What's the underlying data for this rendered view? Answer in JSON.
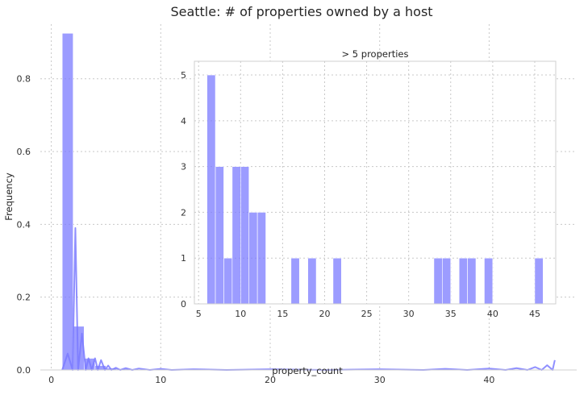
{
  "chart_data": [
    {
      "type": "bar",
      "title": "Seattle: # of properties owned by a host",
      "xlabel": "property_count",
      "ylabel": "Frequency",
      "xlim": [
        -1,
        48
      ],
      "ylim": [
        0,
        0.95
      ],
      "x_ticks": [
        0,
        10,
        20,
        30,
        40
      ],
      "y_ticks": [
        0.0,
        0.2,
        0.4,
        0.6,
        0.8
      ],
      "grid": true,
      "color": "#7b7bff",
      "bin_width": 1,
      "bars": [
        {
          "x": 1,
          "y": 0.925
        },
        {
          "x": 2,
          "y": 0.12
        },
        {
          "x": 3,
          "y": 0.032
        },
        {
          "x": 4,
          "y": 0.012
        },
        {
          "x": 5,
          "y": 0.005
        },
        {
          "x": 6,
          "y": 0.003
        }
      ],
      "line": {
        "x": [
          1.0,
          1.5,
          1.95,
          2.2,
          2.45,
          2.8,
          3.15,
          3.4,
          3.7,
          4.0,
          4.25,
          4.55,
          4.9,
          5.2,
          5.5,
          5.9,
          6.3,
          6.8,
          7.4,
          8.0,
          9.0,
          10.0,
          11.0,
          13.0,
          16.0,
          20.0,
          25.0,
          30.0,
          34.0,
          36.0,
          38.0,
          40.0,
          41.5,
          42.5,
          43.5,
          44.2,
          44.8,
          45.3,
          45.8,
          46.0
        ],
        "y": [
          0.0,
          0.045,
          0.0,
          0.39,
          0.0,
          0.1,
          0.0,
          0.032,
          0.0,
          0.032,
          0.0,
          0.027,
          0.0,
          0.012,
          0.0,
          0.006,
          0.0,
          0.005,
          0.0,
          0.004,
          0.0,
          0.003,
          0.0,
          0.002,
          0.0,
          0.002,
          0.0,
          0.002,
          0.0,
          0.003,
          0.0,
          0.004,
          0.0,
          0.005,
          0.0,
          0.008,
          0.0,
          0.013,
          0.0,
          0.027
        ]
      }
    },
    {
      "type": "bar",
      "title": "> 5 properties",
      "xlim": [
        4.5,
        47.5
      ],
      "ylim": [
        0,
        5.3
      ],
      "x_ticks": [
        5,
        10,
        15,
        20,
        25,
        30,
        35,
        40,
        45
      ],
      "y_ticks": [
        0,
        1,
        2,
        3,
        4,
        5
      ],
      "grid": true,
      "color": "#7b7bff",
      "bin_width": 1,
      "bars": [
        {
          "x": 6,
          "y": 5
        },
        {
          "x": 7,
          "y": 3
        },
        {
          "x": 8,
          "y": 1
        },
        {
          "x": 9,
          "y": 3
        },
        {
          "x": 10,
          "y": 3
        },
        {
          "x": 11,
          "y": 2
        },
        {
          "x": 12,
          "y": 2
        },
        {
          "x": 16,
          "y": 1
        },
        {
          "x": 18,
          "y": 1
        },
        {
          "x": 21,
          "y": 1
        },
        {
          "x": 33,
          "y": 1
        },
        {
          "x": 34,
          "y": 1
        },
        {
          "x": 36,
          "y": 1
        },
        {
          "x": 37,
          "y": 1
        },
        {
          "x": 39,
          "y": 1
        },
        {
          "x": 45,
          "y": 1
        }
      ]
    }
  ]
}
